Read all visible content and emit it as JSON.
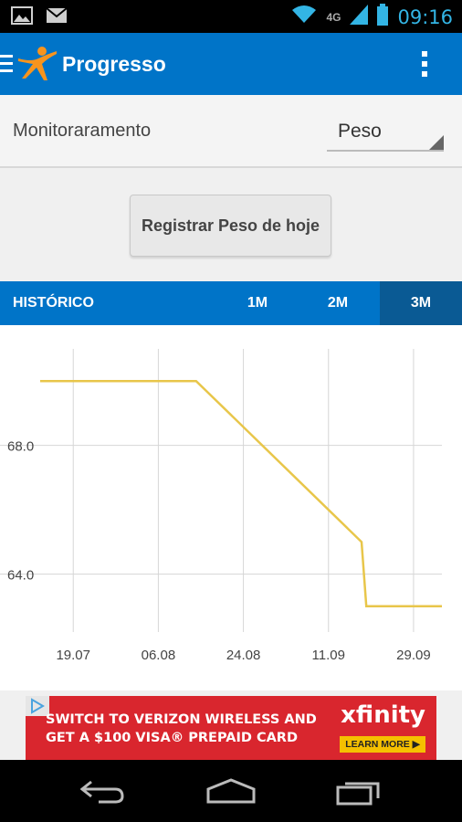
{
  "status_bar": {
    "time": "09:16",
    "network": "4G",
    "icons": [
      "image-icon",
      "gmail-icon",
      "wifi-icon",
      "signal-icon",
      "battery-icon"
    ]
  },
  "action_bar": {
    "title": "Progresso",
    "icons": [
      "menu-icon",
      "app-logo-icon",
      "overflow-menu-icon"
    ]
  },
  "filter": {
    "label": "Monitoraramento",
    "selected": "Peso"
  },
  "register_button": {
    "label": "Registrar Peso de hoje"
  },
  "tabs": {
    "history": "HISTÓRICO",
    "m1": "1M",
    "m2": "2M",
    "m3": "3M",
    "active": "3M"
  },
  "chart_data": {
    "type": "line",
    "x_ticks": [
      "19.07",
      "06.08",
      "24.08",
      "11.09",
      "29.09"
    ],
    "y_ticks": [
      "68.0",
      "64.0"
    ],
    "ylim": [
      62.2,
      71.0
    ],
    "grid": true,
    "line_color": "#e8c64a",
    "series": [
      {
        "points": [
          {
            "x": "2012-07-12",
            "y": 70.0
          },
          {
            "x": "2012-08-14",
            "y": 70.0
          },
          {
            "x": "2012-09-18",
            "y": 65.0
          },
          {
            "x": "2012-09-19",
            "y": 63.0
          },
          {
            "x": "2012-10-05",
            "y": 63.0
          }
        ]
      }
    ]
  },
  "ad": {
    "line1": "SWITCH TO VERIZON WIRELESS AND",
    "line2": "GET A $100 VISA® PREPAID CARD",
    "brand": "xfinity",
    "cta": "LEARN MORE ▶"
  },
  "nav_bar": {
    "icons": [
      "back-icon",
      "home-icon",
      "recent-apps-icon"
    ]
  }
}
